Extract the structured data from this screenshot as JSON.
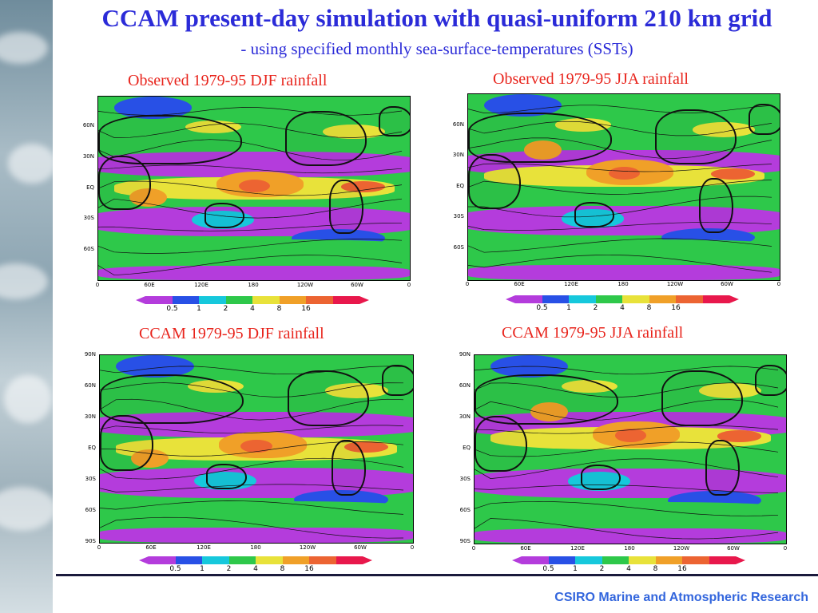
{
  "slide": {
    "title": "CCAM present-day simulation with quasi-uniform 210 km grid",
    "subtitle": "- using specified monthly sea-surface-temperatures (SSTs)",
    "footer": "CSIRO Marine and Atmospheric Research"
  },
  "colors": {
    "title": "#2b2bd8",
    "panel_title": "#e8241c",
    "footer": "#3366dd",
    "rain_scale": [
      "#b43cdc",
      "#2850e6",
      "#16c8dc",
      "#2ec84a",
      "#e8e23a",
      "#f0a028",
      "#ec6432",
      "#e8184c"
    ]
  },
  "panels": [
    {
      "title": "Observed 1979-95 DJF rainfall",
      "y_ticks": [
        "60N",
        "30N",
        "EQ",
        "30S",
        "60S"
      ],
      "x_ticks": [
        "0",
        "60E",
        "120E",
        "180",
        "120W",
        "60W",
        "0"
      ],
      "colorbar": [
        "0.5",
        "1",
        "2",
        "4",
        "8",
        "16"
      ]
    },
    {
      "title": "Observed 1979-95 JJA rainfall",
      "y_ticks": [
        "60N",
        "30N",
        "EQ",
        "30S",
        "60S"
      ],
      "x_ticks": [
        "0",
        "60E",
        "120E",
        "180",
        "120W",
        "60W",
        "0"
      ],
      "colorbar": [
        "0.5",
        "1",
        "2",
        "4",
        "8",
        "16"
      ]
    },
    {
      "title": "CCAM 1979-95 DJF rainfall",
      "y_ticks": [
        "90N",
        "60N",
        "30N",
        "EQ",
        "30S",
        "60S",
        "90S"
      ],
      "x_ticks": [
        "0",
        "60E",
        "120E",
        "180",
        "120W",
        "60W",
        "0"
      ],
      "colorbar": [
        "0.5",
        "1",
        "2",
        "4",
        "8",
        "16"
      ]
    },
    {
      "title": "CCAM 1979-95 JJA rainfall",
      "y_ticks": [
        "90N",
        "60N",
        "30N",
        "EQ",
        "30S",
        "60S",
        "90S"
      ],
      "x_ticks": [
        "0",
        "60E",
        "120E",
        "180",
        "120W",
        "60W",
        "0"
      ],
      "colorbar": [
        "0.5",
        "1",
        "2",
        "4",
        "8",
        "16"
      ]
    }
  ]
}
